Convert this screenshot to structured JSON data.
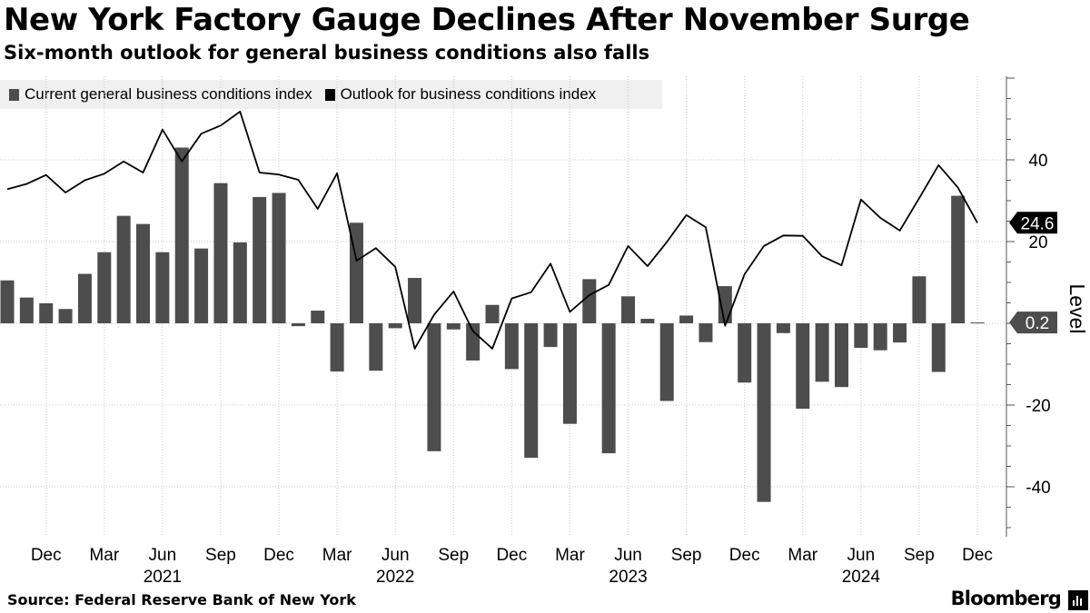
{
  "title": "New York Factory Gauge Declines After November Surge",
  "subtitle": "Six-month outlook for general business conditions also falls",
  "legend": {
    "current": "Current general business conditions index",
    "outlook": "Outlook for business conditions index"
  },
  "source": "Source: Federal Reserve Bank of New York",
  "brand": "Bloomberg",
  "colors": {
    "bar": "#4d4d4d",
    "line": "#000000",
    "legend_bg": "#f0f0f0",
    "grid": "#c8c8c8"
  },
  "chart_data": {
    "type": "bar",
    "title": "New York Factory Gauge Declines After November Surge",
    "ylabel": "Level",
    "ylim": [
      -52,
      60
    ],
    "yticks": [
      -40,
      -20,
      0,
      20,
      40
    ],
    "grid": true,
    "categories": [
      "2020-10",
      "2020-11",
      "2020-12",
      "2021-01",
      "2021-02",
      "2021-03",
      "2021-04",
      "2021-05",
      "2021-06",
      "2021-07",
      "2021-08",
      "2021-09",
      "2021-10",
      "2021-11",
      "2021-12",
      "2022-01",
      "2022-02",
      "2022-03",
      "2022-04",
      "2022-05",
      "2022-06",
      "2022-07",
      "2022-08",
      "2022-09",
      "2022-10",
      "2022-11",
      "2022-12",
      "2023-01",
      "2023-02",
      "2023-03",
      "2023-04",
      "2023-05",
      "2023-06",
      "2023-07",
      "2023-08",
      "2023-09",
      "2023-10",
      "2023-11",
      "2023-12",
      "2024-01",
      "2024-02",
      "2024-03",
      "2024-04",
      "2024-05",
      "2024-06",
      "2024-07",
      "2024-08",
      "2024-09",
      "2024-10",
      "2024-11",
      "2024-12"
    ],
    "month_labels": [
      {
        "index": 2,
        "month": "Dec",
        "year": ""
      },
      {
        "index": 5,
        "month": "Mar",
        "year": ""
      },
      {
        "index": 8,
        "month": "Jun",
        "year": "2021"
      },
      {
        "index": 11,
        "month": "Sep",
        "year": ""
      },
      {
        "index": 14,
        "month": "Dec",
        "year": ""
      },
      {
        "index": 17,
        "month": "Mar",
        "year": ""
      },
      {
        "index": 20,
        "month": "Jun",
        "year": "2022"
      },
      {
        "index": 23,
        "month": "Sep",
        "year": ""
      },
      {
        "index": 26,
        "month": "Dec",
        "year": ""
      },
      {
        "index": 29,
        "month": "Mar",
        "year": ""
      },
      {
        "index": 32,
        "month": "Jun",
        "year": "2023"
      },
      {
        "index": 35,
        "month": "Sep",
        "year": ""
      },
      {
        "index": 38,
        "month": "Dec",
        "year": ""
      },
      {
        "index": 41,
        "month": "Mar",
        "year": ""
      },
      {
        "index": 44,
        "month": "Jun",
        "year": "2024"
      },
      {
        "index": 47,
        "month": "Sep",
        "year": ""
      },
      {
        "index": 50,
        "month": "Dec",
        "year": ""
      }
    ],
    "series": [
      {
        "name": "Current general business conditions index",
        "kind": "bar",
        "values": [
          10.5,
          6.3,
          4.9,
          3.5,
          12.1,
          17.4,
          26.3,
          24.3,
          17.4,
          43.0,
          18.3,
          34.3,
          19.8,
          30.9,
          31.9,
          -0.7,
          3.1,
          -11.8,
          24.6,
          -11.6,
          -1.2,
          11.1,
          -31.3,
          -1.5,
          -9.1,
          4.5,
          -11.2,
          -32.9,
          -5.8,
          -24.6,
          10.8,
          -31.8,
          6.6,
          1.1,
          -19.0,
          1.9,
          -4.6,
          9.1,
          -14.5,
          -43.7,
          -2.4,
          -20.9,
          -14.3,
          -15.6,
          -6.0,
          -6.6,
          -4.7,
          11.5,
          -11.9,
          31.2,
          0.2
        ]
      },
      {
        "name": "Outlook for business conditions index",
        "kind": "line",
        "values": [
          32.8,
          34.1,
          36.3,
          32.0,
          35.0,
          36.6,
          39.6,
          36.9,
          47.4,
          39.6,
          46.4,
          48.4,
          51.8,
          36.9,
          36.4,
          35.1,
          28.0,
          36.7,
          15.3,
          18.4,
          13.8,
          -6.2,
          2.1,
          7.8,
          -1.9,
          -6.2,
          6.1,
          7.6,
          14.6,
          2.8,
          6.9,
          9.4,
          18.9,
          14.0,
          19.9,
          26.5,
          23.5,
          -0.6,
          12.0,
          18.9,
          21.5,
          21.4,
          16.4,
          14.2,
          30.3,
          25.8,
          22.7,
          30.6,
          38.7,
          33.2,
          24.6
        ]
      }
    ],
    "end_labels": {
      "outlook": "24.6",
      "current": "0.2"
    }
  }
}
